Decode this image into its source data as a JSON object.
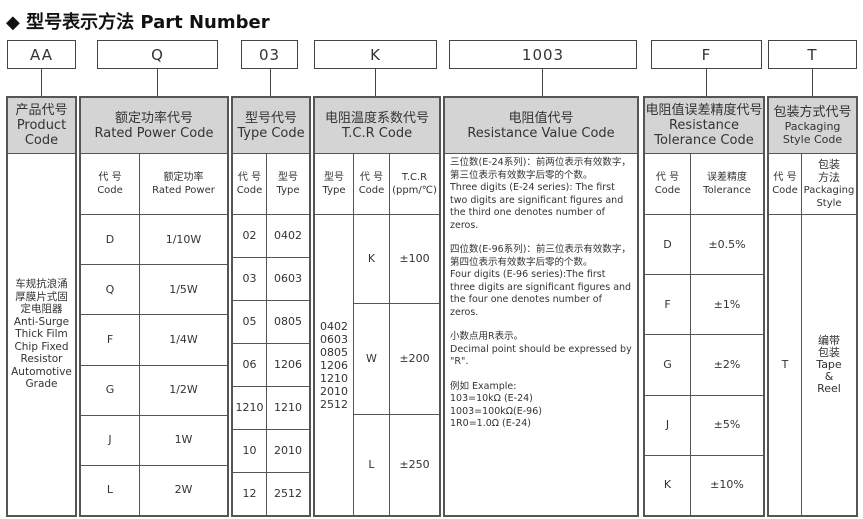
{
  "title": "◆ 型号表示方法  Part Number",
  "codes": [
    "AA",
    "Q",
    "03",
    "K",
    "1003",
    "F",
    "T"
  ],
  "product": {
    "h_cn": "产品代号",
    "h_en1": "Product",
    "h_en2": "Code",
    "desc": [
      "车规抗浪涌",
      "厚膜片式固",
      "定电阻器",
      "Anti-Surge",
      "Thick Film",
      "Chip Fixed",
      "Resistor",
      "Automotive",
      "Grade"
    ]
  },
  "power": {
    "h_cn": "额定功率代号",
    "h_en": "Rated Power Code",
    "c1_cn": "代 号",
    "c1_en": "Code",
    "c2_cn": "额定功率",
    "c2_en": "Rated Power",
    "rows": [
      [
        "D",
        "1/10W"
      ],
      [
        "Q",
        "1/5W"
      ],
      [
        "F",
        "1/4W"
      ],
      [
        "G",
        "1/2W"
      ],
      [
        "J",
        "1W"
      ],
      [
        "L",
        "2W"
      ]
    ]
  },
  "type": {
    "h_cn": "型号代号",
    "h_en": "Type Code",
    "c1_cn": "代 号",
    "c1_en": "Code",
    "c2_cn": "型号",
    "c2_en": "Type",
    "rows": [
      [
        "02",
        "0402"
      ],
      [
        "03",
        "0603"
      ],
      [
        "05",
        "0805"
      ],
      [
        "06",
        "1206"
      ],
      [
        "1210",
        "1210"
      ],
      [
        "10",
        "2010"
      ],
      [
        "12",
        "2512"
      ]
    ]
  },
  "tcr": {
    "h_cn": "电阻温度系数代号",
    "h_en": "T.C.R Code",
    "c1_cn": "型号",
    "c1_en": "Type",
    "c2_cn": "代 号",
    "c2_en": "Code",
    "c3_cn": "T.C.R",
    "c3_en": "(ppm/℃)",
    "types": [
      "0402",
      "0603",
      "0805",
      "1206",
      "1210",
      "2010",
      "2512"
    ],
    "rows": [
      [
        "K",
        "±100"
      ],
      [
        "W",
        "±200"
      ],
      [
        "L",
        "±250"
      ]
    ]
  },
  "resistance": {
    "h_cn": "电阻值代号",
    "h_en": "Resistance Value Code",
    "p1": [
      "三位数(E-24系列)：前两位表示有效数字，第三位表示有效数字后零的个数。",
      "Three digits (E-24 series): The first two digits are significant figures and the third one denotes number of zeros."
    ],
    "p2": [
      "四位数(E-96系列)：前三位表示有效数字，第四位表示有效数字后零的个数。",
      "Four digits (E-96 series):The first three digits are significant figures and the four one denotes number of zeros."
    ],
    "p3": [
      "小数点用R表示。",
      "Decimal point should be expressed by \"R\"."
    ],
    "p4": [
      "例如 Example:",
      "103=10kΩ  (E-24)",
      "1003=100kΩ(E-96)",
      "1R0=1.0Ω  (E-24)"
    ]
  },
  "tolerance": {
    "h_cn": "电阻值误差精度代号",
    "h_en1": "Resistance",
    "h_en2": "Tolerance Code",
    "c1_cn": "代 号",
    "c1_en": "Code",
    "c2_cn": "误差精度",
    "c2_en": "Tolerance",
    "rows": [
      [
        "D",
        "±0.5%"
      ],
      [
        "F",
        "±1%"
      ],
      [
        "G",
        "±2%"
      ],
      [
        "J",
        "±5%"
      ],
      [
        "K",
        "±10%"
      ]
    ]
  },
  "packaging": {
    "h_cn": "包装方式代号",
    "h_en1": "Packaging",
    "h_en2": "Style Code",
    "c1_cn": "代 号",
    "c1_en": "Code",
    "c2_cn1": "包装",
    "c2_cn2": "方法",
    "c2_en1": "Packaging",
    "c2_en2": "Style",
    "code": "T",
    "style": [
      "编带",
      "包装",
      "Tape",
      "&",
      "Reel"
    ]
  }
}
